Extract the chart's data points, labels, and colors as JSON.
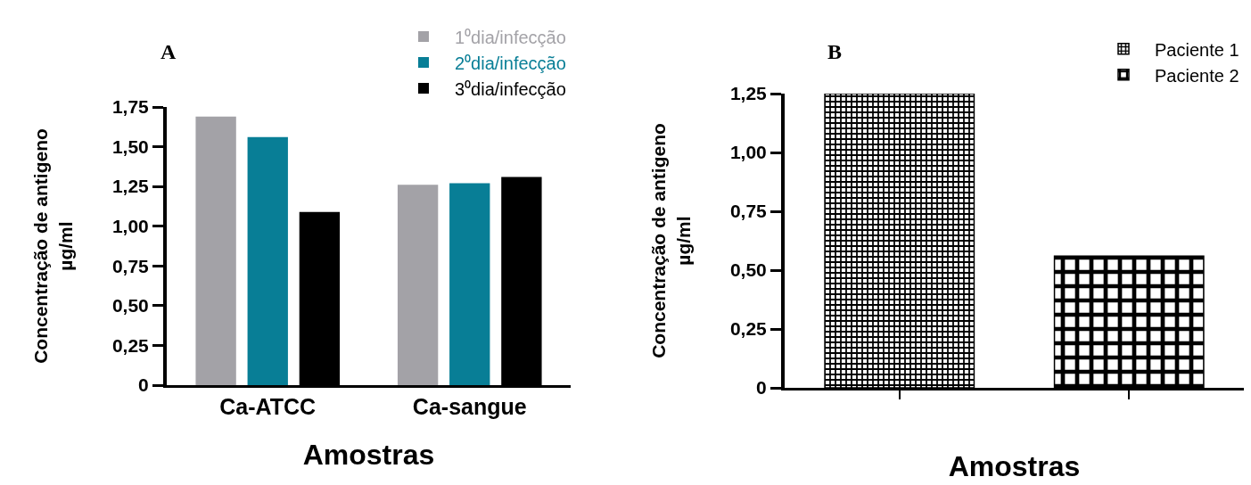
{
  "chart_data": [
    {
      "type": "bar",
      "title": "A",
      "xlabel": "Amostras",
      "ylabel": "Concentração de antigeno\nµg/ml",
      "categories": [
        "Ca-ATCC",
        "Ca-sangue"
      ],
      "series": [
        {
          "name": "1⁰dia/infecção",
          "color": "#a3a2a7",
          "values": [
            1.69,
            1.26
          ]
        },
        {
          "name": "2⁰dia/infecção",
          "color": "#087e96",
          "values": [
            1.56,
            1.27
          ]
        },
        {
          "name": "3⁰dia/infecção",
          "color": "#000000",
          "values": [
            1.09,
            1.31
          ]
        }
      ],
      "ylim": [
        0,
        1.75
      ],
      "yticks": [
        0,
        {
          "value": 0.25,
          "label": "0,25"
        },
        {
          "value": 0.5,
          "label": "0,50"
        },
        {
          "value": 0.75,
          "label": "0,75"
        },
        {
          "value": 1,
          "label": "1,00"
        },
        {
          "value": 1.25,
          "label": "1,25"
        },
        {
          "value": 1.5,
          "label": "1,50"
        },
        {
          "value": 1.75,
          "label": "1,75"
        }
      ],
      "grid": false,
      "legend": "top right"
    },
    {
      "type": "bar",
      "title": "B",
      "xlabel": "Amostras",
      "ylabel": "Concentração de antigeno\nµg/ml",
      "categories": [
        null,
        null
      ],
      "series": [
        {
          "name": "Paciente 1",
          "color": "#000000",
          "values": [
            1.25,
            null
          ]
        },
        {
          "name": "Paciente 2",
          "color": "#000000",
          "values": [
            null,
            0.56
          ]
        }
      ],
      "ylim": [
        0,
        1.25
      ],
      "yticks": [
        0,
        {
          "value": 0.25,
          "label": "0,25"
        },
        {
          "value": 0.5,
          "label": "0,50"
        },
        {
          "value": 0.75,
          "label": "0,75"
        },
        {
          "value": 1,
          "label": "1,00"
        },
        {
          "value": 1.25,
          "label": "1,25"
        }
      ],
      "grid": false,
      "legend": "top right",
      "tick_labels": "y"
    }
  ]
}
